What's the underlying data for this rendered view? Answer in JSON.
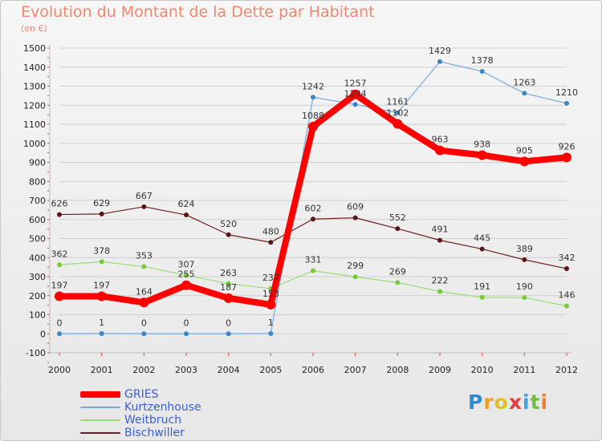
{
  "title": "Evolution du Montant de la Dette par Habitant",
  "subtitle": "(en €)",
  "logo": {
    "letters": [
      "P",
      "r",
      "o",
      "x",
      "i",
      "t",
      "i"
    ],
    "colors": [
      "#2f8ad6",
      "#f0a020",
      "#e0c020",
      "#e04040",
      "#40a0e0",
      "#70c040",
      "#f08030"
    ]
  },
  "chart_data": {
    "type": "line",
    "title": "Evolution du Montant de la Dette par Habitant",
    "subtitle": "(en €)",
    "x": [
      "2000",
      "2001",
      "2002",
      "2003",
      "2004",
      "2005",
      "2006",
      "2007",
      "2008",
      "2009",
      "2010",
      "2011",
      "2012"
    ],
    "ylim": [
      -100,
      1500
    ],
    "yticks": [
      -100,
      0,
      100,
      200,
      300,
      400,
      500,
      600,
      700,
      800,
      900,
      1000,
      1100,
      1200,
      1300,
      1400,
      1500
    ],
    "grid": "horizontal",
    "legend_position": "bottom-left",
    "series": [
      {
        "name": "Bischwiller",
        "color": "#6e2020",
        "values": [
          626,
          629,
          667,
          624,
          520,
          480,
          602,
          609,
          552,
          491,
          445,
          389,
          342
        ]
      },
      {
        "name": "Weitbruch",
        "color": "#99dd77",
        "values": [
          362,
          378,
          353,
          307,
          263,
          237,
          331,
          299,
          269,
          222,
          191,
          190,
          146
        ]
      },
      {
        "name": "Kurtzenhouse",
        "color": "#77aadd",
        "values": [
          0,
          1,
          0,
          0,
          0,
          1,
          1242,
          1204,
          1161,
          1429,
          1378,
          1263,
          1210
        ]
      },
      {
        "name": "GRIES",
        "color": "#ff0000",
        "values": [
          197,
          197,
          164,
          255,
          187,
          153,
          1088,
          1257,
          1102,
          963,
          938,
          905,
          926
        ]
      }
    ]
  }
}
